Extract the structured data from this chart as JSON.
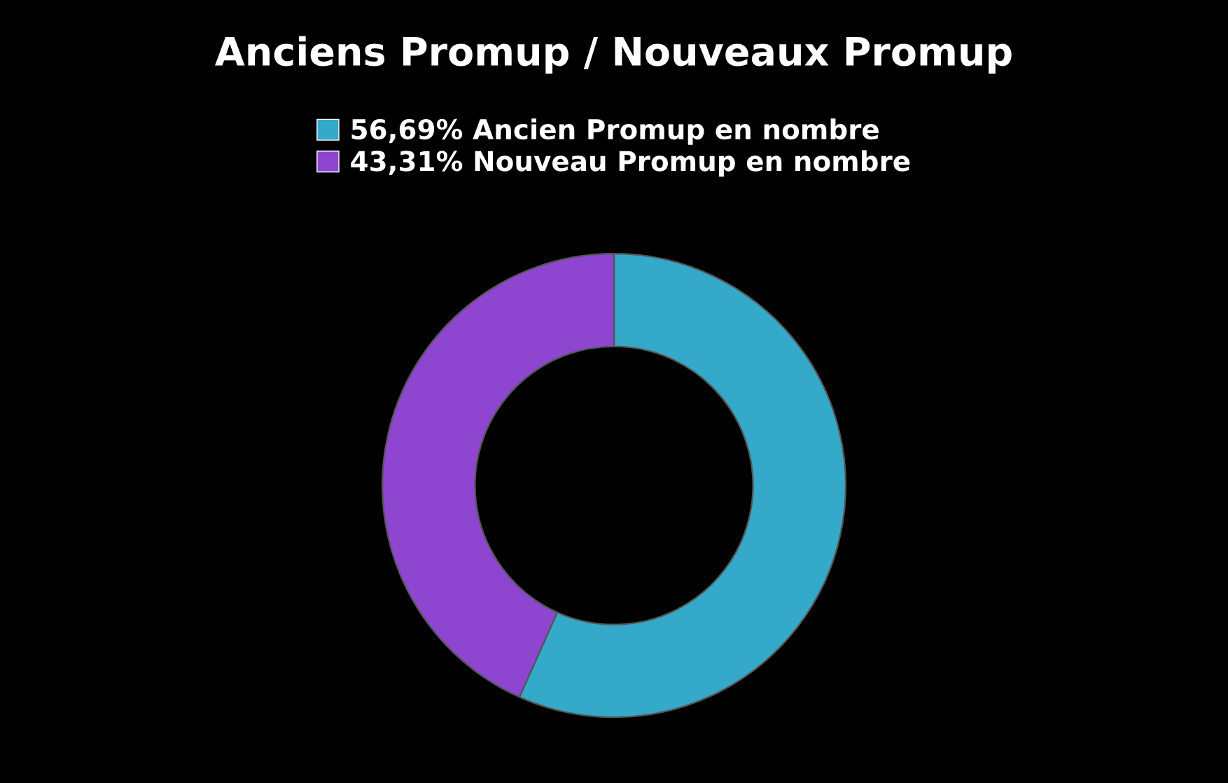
{
  "chart_data": {
    "type": "donut",
    "title": "Anciens Promup / Nouveaux Promup",
    "categories": [
      "56,69% Ancien Promup en nombre",
      "43,31% Nouveau Promup en nombre"
    ],
    "values": [
      56.69,
      43.31
    ],
    "colors": [
      "#35a9c9",
      "#8e45d0"
    ],
    "legend": "top"
  }
}
